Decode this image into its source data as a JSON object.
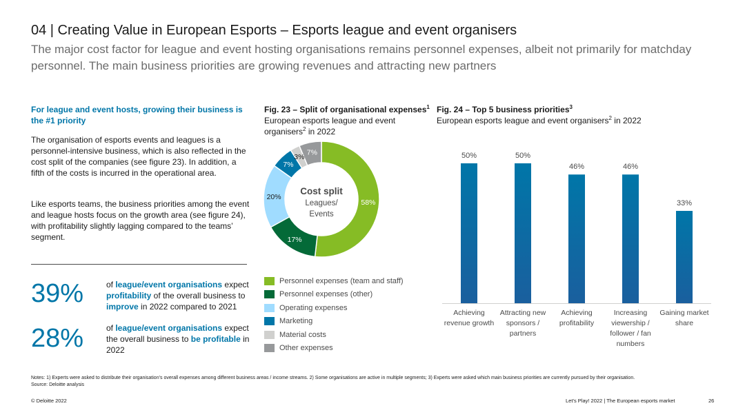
{
  "header": {
    "title": "04 | Creating Value in European Esports – Esports league and event organisers",
    "subtitle": "The major cost factor for league and event hosting organisations remains personnel expenses, albeit not primarily for matchday personnel. The main business priorities are growing revenues and attracting new partners"
  },
  "left": {
    "heading": "For league and event hosts, growing their business is the #1 priority",
    "para1": "The organisation of esports events and leagues is a personnel-intensive business, which is also reflected in the cost split of the companies (see figure 23). In addition, a fifth of the costs is incurred in the operational area.",
    "para2": "Like esports teams, the business priorities among the event and league hosts focus on the growth area (see figure 24), with profitability slightly lagging compared to the teams’ segment.",
    "stat1": {
      "value": "39%",
      "t1": "of ",
      "t2": "league/event organisations",
      "t3": " expect ",
      "t4": "profitability",
      "t5": " of the overall business to ",
      "t6": "improve",
      "t7": " in 2022 compared to 2021"
    },
    "stat2": {
      "value": "28%",
      "t1": "of ",
      "t2": "league/event organisations",
      "t3": " expect the overall business to ",
      "t4": "be profitable",
      "t5": " in 2022"
    }
  },
  "fig23": {
    "title": "Fig. 23 – Split of organisational expenses",
    "title_sup": "1",
    "sub_a": "European esports league and event organisers",
    "sub_sup": "2",
    "sub_b": " in 2022",
    "center_title": "Cost split",
    "center_sub1": "Leagues/",
    "center_sub2": "Events"
  },
  "fig24": {
    "title": "Fig. 24 – Top 5 business priorities",
    "title_sup": "3",
    "sub_a": "European esports league and event organisers",
    "sub_sup": "2",
    "sub_b": " in 2022"
  },
  "chart_data": [
    {
      "type": "pie",
      "donut": true,
      "categories": [
        "Personnel expenses (team and staff)",
        "Personnel expenses (other)",
        "Operating expenses",
        "Marketing",
        "Material costs",
        "Other expenses"
      ],
      "values": [
        58,
        17,
        20,
        7,
        3,
        7
      ],
      "labels": [
        "58%",
        "17%",
        "20%",
        "7%",
        "3%",
        "7%"
      ],
      "colors": [
        "#86bc25",
        "#046a38",
        "#a0dcff",
        "#0076a8",
        "#d0d0ce",
        "#97999b"
      ],
      "legend_position": "bottom"
    },
    {
      "type": "bar",
      "categories": [
        [
          "Achieving",
          "revenue growth"
        ],
        [
          "Attracting new",
          "sponsors /",
          "partners"
        ],
        [
          "Achieving",
          "profitability"
        ],
        [
          "Increasing",
          "viewership /",
          "follower / fan",
          "numbers"
        ],
        [
          "Gaining market",
          "share"
        ]
      ],
      "values": [
        50,
        50,
        46,
        46,
        33
      ],
      "labels": [
        "50%",
        "50%",
        "46%",
        "46%",
        "33%"
      ],
      "color": "#0076a8",
      "ylim": [
        0,
        55
      ],
      "grid": false
    }
  ],
  "footer": {
    "notes": "Notes: 1) Experts were asked to distribute their organisation’s overall expenses among different business areas / income streams. 2) Some organisations are active in multiple segments; 3) Experts were asked which main business priorities are currently pursued by their organisation.",
    "source": "Source: Deloitte analysis",
    "copyright": "© Deloitte 2022",
    "publication": "Let’s Play! 2022 | The European esports market",
    "page": "26"
  }
}
